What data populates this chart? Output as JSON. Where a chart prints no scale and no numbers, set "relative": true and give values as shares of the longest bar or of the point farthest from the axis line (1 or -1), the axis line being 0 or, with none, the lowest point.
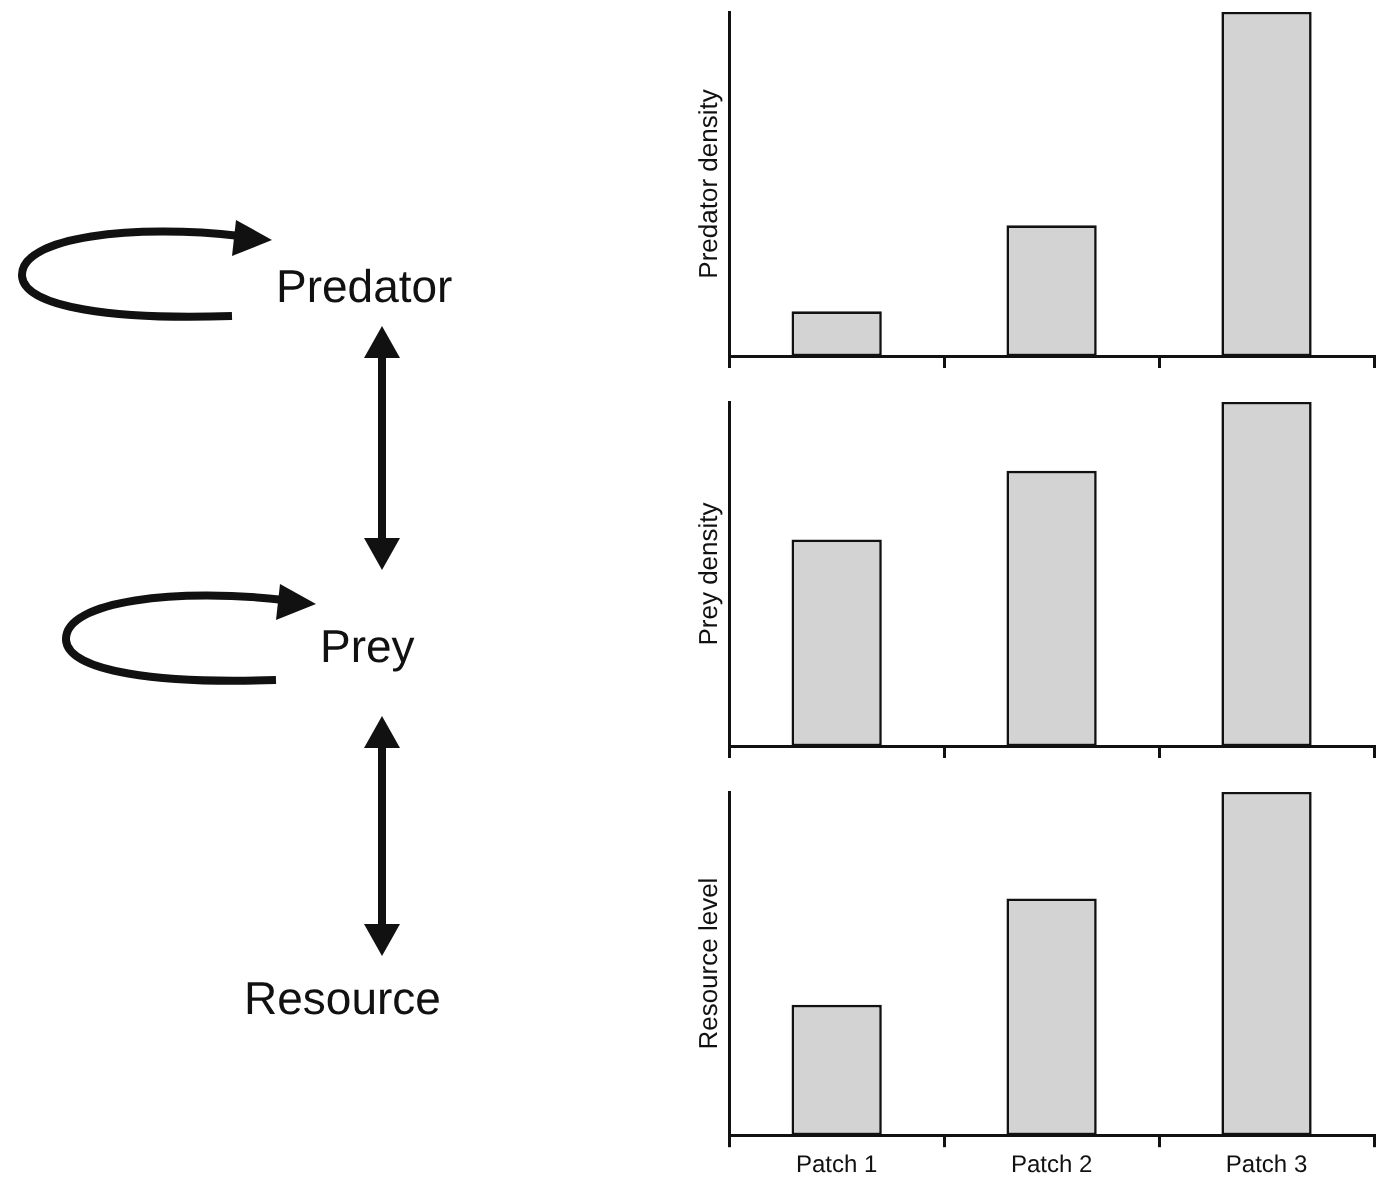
{
  "chart_data": [
    {
      "type": "other",
      "annotations": [
        "Predator",
        "Prey",
        "Resource"
      ]
    },
    {
      "type": "bar",
      "categories": [
        null,
        null,
        null
      ],
      "values": [
        0.13,
        0.38,
        1
      ],
      "color": "#d3d3d3",
      "ylabel": "Predator density",
      "relative": true
    },
    {
      "type": "bar",
      "categories": [
        null,
        null,
        null
      ],
      "values": [
        0.6,
        0.8,
        1
      ],
      "color": "#d3d3d3",
      "ylabel": "Prey density",
      "relative": true
    },
    {
      "type": "bar",
      "categories": [
        "Patch 1",
        "Patch 2",
        "Patch 3"
      ],
      "values": [
        0.38,
        0.69,
        1
      ],
      "color": "#d3d3d3",
      "ylabel": "Resource level",
      "relative": true
    }
  ]
}
